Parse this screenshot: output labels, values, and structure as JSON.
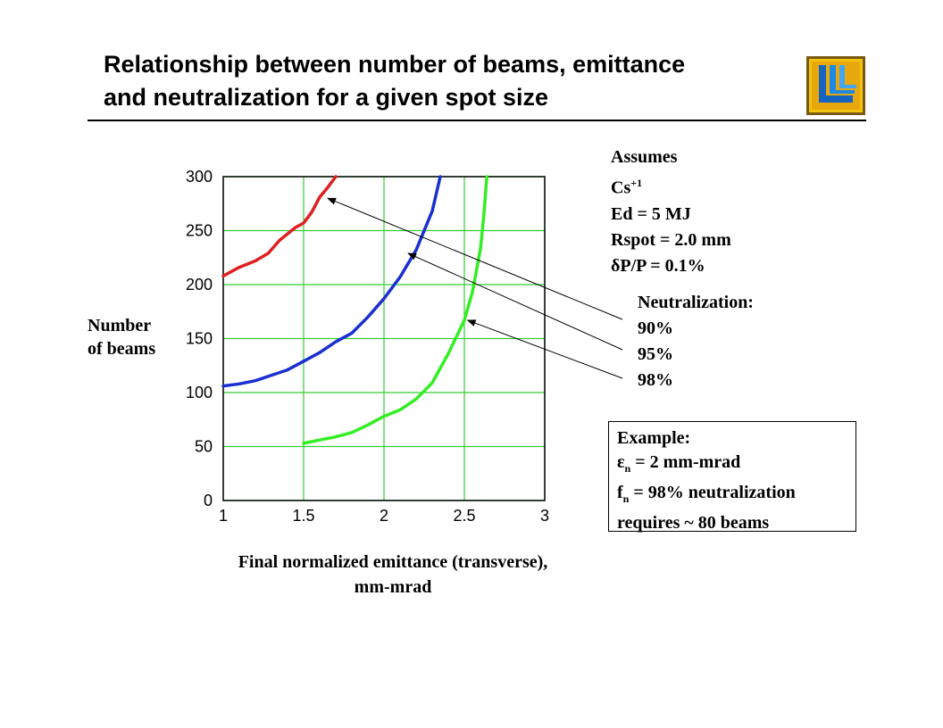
{
  "slide": {
    "title_line1": "Relationship between number of beams, emittance",
    "title_line2": "and neutralization for a given spot size",
    "logo_icon": "llnl-logo-icon"
  },
  "assumptions": {
    "heading": "Assumes",
    "ion": "Cs",
    "ion_charge": "+1",
    "energy": "Ed = 5 MJ",
    "spot": "Rspot = 2.0 mm",
    "delta_symbol": "δ",
    "momentum_spread": "P/P = 0.1%"
  },
  "neutralization": {
    "heading": "Neutralization:",
    "levels": [
      "90%",
      "95%",
      "98%"
    ]
  },
  "example": {
    "heading": "Example:",
    "eps_symbol": "ε",
    "eps_sub": "n",
    "eps_value": " = 2 mm-mrad",
    "f_symbol": "f",
    "f_sub": "n",
    "f_value": " = 98% neutralization",
    "result": "requires ~ 80 beams"
  },
  "chart_data": {
    "type": "line",
    "title": "",
    "xlabel_line1": "Final normalized emittance (transverse),",
    "xlabel_line2": "mm-mrad",
    "ylabel_line1": "Number",
    "ylabel_line2": "of beams",
    "xlim": [
      1,
      3
    ],
    "ylim": [
      0,
      300
    ],
    "x_ticks": [
      "1",
      "1.5",
      "2",
      "2.5",
      "3"
    ],
    "y_ticks": [
      "0",
      "50",
      "100",
      "150",
      "200",
      "250",
      "300"
    ],
    "grid": true,
    "grid_color": "#33cc33",
    "series": [
      {
        "name": "90%",
        "color": "#e02020",
        "points": [
          [
            1.0,
            208
          ],
          [
            1.1,
            216
          ],
          [
            1.2,
            222
          ],
          [
            1.28,
            229
          ],
          [
            1.35,
            241
          ],
          [
            1.45,
            253
          ],
          [
            1.5,
            257
          ],
          [
            1.55,
            267
          ],
          [
            1.6,
            281
          ],
          [
            1.65,
            290
          ],
          [
            1.7,
            300
          ]
        ]
      },
      {
        "name": "95%",
        "color": "#1a2fd0",
        "points": [
          [
            1.0,
            106
          ],
          [
            1.1,
            108
          ],
          [
            1.2,
            111
          ],
          [
            1.3,
            116
          ],
          [
            1.4,
            121
          ],
          [
            1.5,
            129
          ],
          [
            1.6,
            137
          ],
          [
            1.7,
            147
          ],
          [
            1.8,
            155
          ],
          [
            1.9,
            170
          ],
          [
            2.0,
            187
          ],
          [
            2.1,
            207
          ],
          [
            2.2,
            232
          ],
          [
            2.3,
            268
          ],
          [
            2.35,
            300
          ]
        ]
      },
      {
        "name": "98%",
        "color": "#33ee22",
        "points": [
          [
            1.5,
            53
          ],
          [
            1.6,
            56
          ],
          [
            1.7,
            59
          ],
          [
            1.8,
            63
          ],
          [
            1.9,
            70
          ],
          [
            2.0,
            78
          ],
          [
            2.1,
            84
          ],
          [
            2.2,
            94
          ],
          [
            2.3,
            109
          ],
          [
            2.4,
            136
          ],
          [
            2.5,
            167
          ],
          [
            2.55,
            193
          ],
          [
            2.6,
            233
          ],
          [
            2.62,
            262
          ],
          [
            2.64,
            300
          ]
        ]
      }
    ],
    "annotations": [
      {
        "label": "90%",
        "target": [
          1.65,
          280
        ]
      },
      {
        "label": "95%",
        "target": [
          2.15,
          229
        ]
      },
      {
        "label": "98%",
        "target": [
          2.52,
          167
        ]
      }
    ]
  }
}
